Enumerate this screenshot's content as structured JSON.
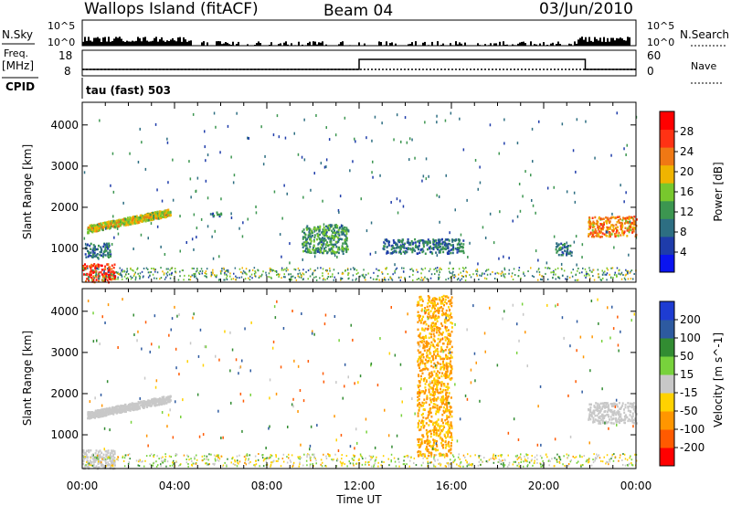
{
  "header": {
    "station": "Wallops Island (fitACF)",
    "beam": "Beam 04",
    "date": "03/Jun/2010"
  },
  "status_panels": {
    "nsky_label": "N.Sky",
    "nsky_ticks": [
      "10^5",
      "10^0"
    ],
    "nsearch_label": "N.Search",
    "nsearch_ticks": [
      "10^5",
      "10^0"
    ],
    "freq_label_line1": "Freq.",
    "freq_label_line2": "[MHz]",
    "freq_ticks": [
      18,
      8
    ],
    "nave_label": "Nave",
    "nave_ticks": [
      60,
      0
    ],
    "cpid_label": "CPID",
    "cpid_text": "tau (fast) 503"
  },
  "colors": {
    "power_scale": [
      "#0a14f0",
      "#1e3caa",
      "#2d6e82",
      "#3c9650",
      "#78c82d",
      "#f0b400",
      "#f07814",
      "#ff3214",
      "#ff0000"
    ],
    "velocity_scale": [
      "#ff0000",
      "#ff5a00",
      "#ff9600",
      "#ffd200",
      "#c8c8c8",
      "#78d23c",
      "#328c32",
      "#2d5aa0",
      "#1e3cd2"
    ],
    "axis": "#000000"
  },
  "chart_data": [
    {
      "type": "heatmap",
      "name": "Power",
      "ylabel": "Slant Range [km]",
      "y_ticks": [
        1000,
        2000,
        3000,
        4000
      ],
      "ylim": [
        180,
        4550
      ],
      "xlim": [
        0,
        24
      ],
      "colorbar_label": "Power [dB]",
      "colorbar_ticks": [
        4,
        8,
        12,
        16,
        20,
        24,
        28
      ],
      "colorbar_range": [
        0,
        32
      ],
      "regions": [
        {
          "x": [
            0.0,
            1.4
          ],
          "y": [
            200,
            650
          ],
          "value": 27
        },
        {
          "x": [
            0.1,
            1.2
          ],
          "y": [
            800,
            1150
          ],
          "value": 9
        },
        {
          "x": [
            0.2,
            3.8
          ],
          "y": [
            1400,
            2100
          ],
          "value": 18
        },
        {
          "x": [
            5.5,
            6.0
          ],
          "y": [
            1800,
            1900
          ],
          "value": 8
        },
        {
          "x": [
            9.5,
            11.5
          ],
          "y": [
            900,
            1600
          ],
          "value": 12
        },
        {
          "x": [
            13.0,
            16.5
          ],
          "y": [
            900,
            1250
          ],
          "value": 9
        },
        {
          "x": [
            20.5,
            21.2
          ],
          "y": [
            850,
            1150
          ],
          "value": 10
        },
        {
          "x": [
            21.9,
            24.0
          ],
          "y": [
            1300,
            1800
          ],
          "value": 22
        }
      ]
    },
    {
      "type": "heatmap",
      "name": "Velocity",
      "ylabel": "Slant Range [km]",
      "xlabel": "Time UT",
      "x_ticks": [
        "00:00",
        "04:00",
        "08:00",
        "12:00",
        "16:00",
        "20:00",
        "00:00"
      ],
      "y_ticks": [
        1000,
        2000,
        3000,
        4000
      ],
      "ylim": [
        180,
        4550
      ],
      "xlim": [
        0,
        24
      ],
      "colorbar_label": "Velocity [m s^-1]",
      "colorbar_ticks": [
        -200,
        -100,
        -50,
        -15,
        15,
        50,
        100,
        200
      ],
      "regions": [
        {
          "x": [
            0.0,
            1.4
          ],
          "y": [
            200,
            650
          ],
          "value": 0
        },
        {
          "x": [
            0.2,
            3.8
          ],
          "y": [
            1400,
            2100
          ],
          "value": 0
        },
        {
          "x": [
            21.9,
            24.0
          ],
          "y": [
            1300,
            1800
          ],
          "value": 0
        },
        {
          "x": [
            14.5,
            16.0
          ],
          "y": [
            500,
            4400
          ],
          "value": -60
        }
      ]
    }
  ],
  "freq_series": {
    "x": [
      0,
      12,
      12,
      21.8,
      21.8,
      24
    ],
    "y": [
      9.5,
      9.5,
      15,
      15,
      9.5,
      9.5
    ]
  },
  "nave_series": {
    "x": [
      0,
      24
    ],
    "y": [
      15,
      15
    ]
  }
}
